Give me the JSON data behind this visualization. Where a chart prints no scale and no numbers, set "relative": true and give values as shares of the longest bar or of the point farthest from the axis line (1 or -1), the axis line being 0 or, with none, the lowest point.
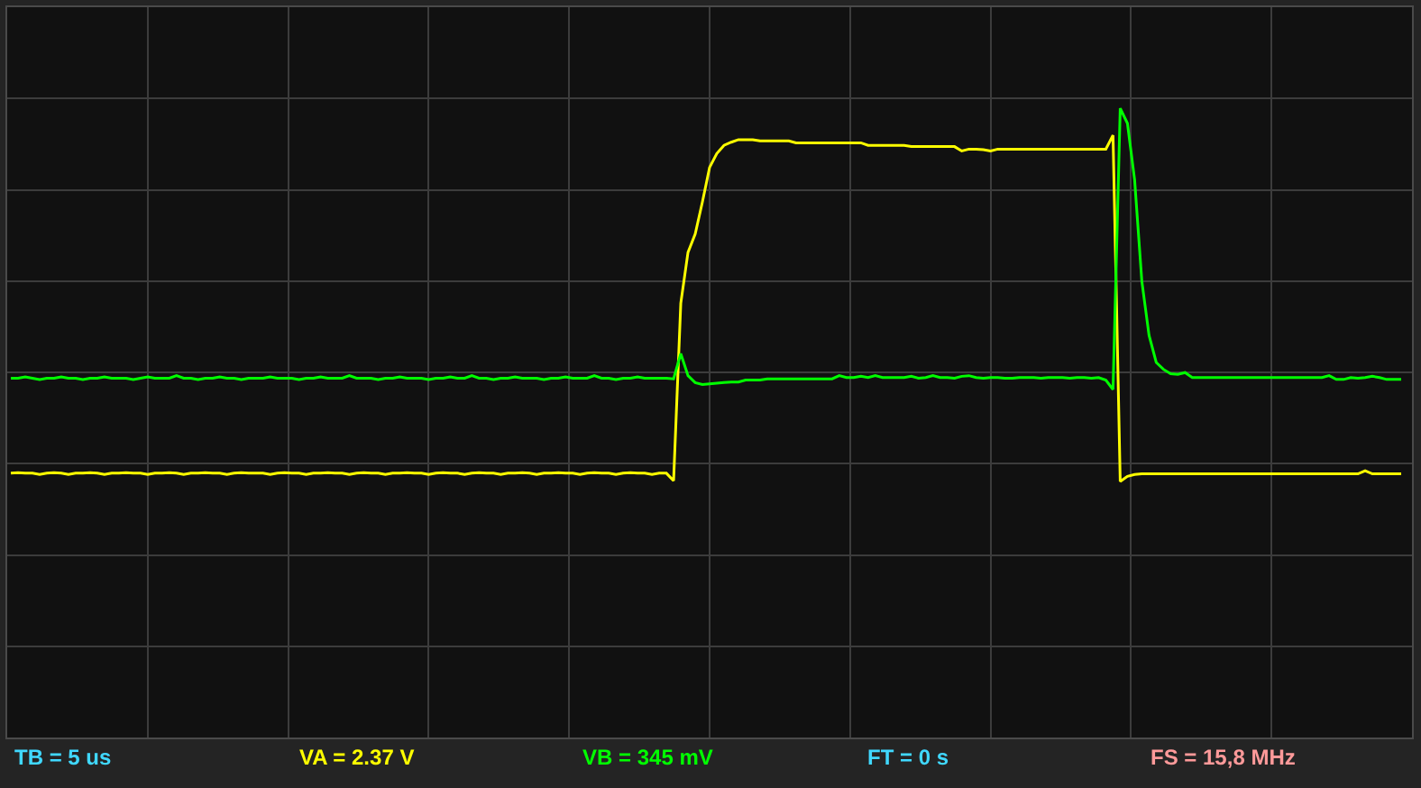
{
  "chart_data": {
    "type": "line",
    "relative": true,
    "grid": true,
    "categories": [
      null,
      null,
      null,
      null,
      null,
      null,
      null,
      null,
      null,
      null,
      null,
      null,
      null,
      null,
      null,
      null,
      null,
      null,
      null,
      null,
      null,
      null,
      null,
      null,
      null,
      null,
      null,
      null,
      null,
      null,
      null,
      null,
      null,
      null,
      null,
      null,
      null,
      null,
      null,
      null,
      null,
      null,
      null,
      null,
      null,
      null,
      null,
      null,
      null,
      null,
      null,
      null,
      null,
      null,
      null,
      null,
      null,
      null,
      null,
      null,
      null,
      null,
      null,
      null,
      null,
      null,
      null,
      null,
      null,
      null,
      null,
      null,
      null,
      null,
      null,
      null,
      null,
      null,
      null,
      null,
      null,
      null,
      null,
      null,
      null,
      null,
      null,
      null,
      null,
      null,
      null,
      null,
      null,
      null,
      null,
      null,
      null,
      null,
      null,
      null,
      null,
      null,
      null,
      null,
      null,
      null,
      null,
      null,
      null,
      null,
      null,
      null,
      null,
      null,
      null,
      null,
      null,
      null,
      null,
      null,
      null,
      null,
      null,
      null,
      null,
      null,
      null,
      null,
      null,
      null,
      null,
      null,
      null,
      null,
      null,
      null,
      null,
      null,
      null,
      null,
      null,
      null,
      null,
      null,
      null,
      null,
      null,
      null,
      null,
      null,
      null,
      null,
      null,
      null,
      null,
      null,
      null,
      null,
      null,
      null,
      null,
      null,
      null,
      null,
      null,
      null,
      null,
      null,
      null,
      null,
      null,
      null,
      null,
      null,
      null,
      null,
      null,
      null,
      null,
      null,
      null,
      null,
      null,
      null,
      null,
      null,
      null,
      null,
      null,
      null,
      null,
      null,
      null,
      null
    ],
    "series": [
      {
        "color": "#ffff00",
        "values": [
          0.42,
          0.421,
          0.42,
          0.42,
          0.418,
          0.42,
          0.421,
          0.42,
          0.418,
          0.42,
          0.42,
          0.421,
          0.42,
          0.418,
          0.42,
          0.42,
          0.421,
          0.42,
          0.42,
          0.418,
          0.42,
          0.42,
          0.421,
          0.42,
          0.418,
          0.42,
          0.42,
          0.421,
          0.42,
          0.42,
          0.418,
          0.42,
          0.421,
          0.42,
          0.42,
          0.42,
          0.418,
          0.42,
          0.421,
          0.42,
          0.42,
          0.418,
          0.42,
          0.42,
          0.421,
          0.42,
          0.42,
          0.418,
          0.42,
          0.421,
          0.42,
          0.42,
          0.418,
          0.42,
          0.42,
          0.421,
          0.42,
          0.42,
          0.418,
          0.42,
          0.421,
          0.42,
          0.42,
          0.418,
          0.42,
          0.421,
          0.42,
          0.42,
          0.418,
          0.42,
          0.42,
          0.421,
          0.42,
          0.418,
          0.42,
          0.42,
          0.421,
          0.42,
          0.42,
          0.418,
          0.42,
          0.421,
          0.42,
          0.42,
          0.418,
          0.42,
          0.421,
          0.42,
          0.42,
          0.418,
          0.42,
          0.42,
          0.408,
          0.69,
          0.771,
          0.8,
          0.851,
          0.906,
          0.928,
          0.941,
          0.946,
          0.95,
          0.95,
          0.95,
          0.948,
          0.948,
          0.948,
          0.948,
          0.948,
          0.945,
          0.945,
          0.945,
          0.945,
          0.945,
          0.945,
          0.945,
          0.945,
          0.945,
          0.945,
          0.941,
          0.941,
          0.941,
          0.941,
          0.941,
          0.941,
          0.939,
          0.939,
          0.939,
          0.939,
          0.939,
          0.939,
          0.939,
          0.932,
          0.935,
          0.935,
          0.934,
          0.932,
          0.935,
          0.935,
          0.935,
          0.935,
          0.935,
          0.935,
          0.935,
          0.935,
          0.935,
          0.935,
          0.935,
          0.935,
          0.935,
          0.935,
          0.935,
          0.935,
          0.957,
          0.407,
          0.415,
          0.418,
          0.419,
          0.419,
          0.419,
          0.419,
          0.419,
          0.419,
          0.419,
          0.419,
          0.419,
          0.419,
          0.419,
          0.419,
          0.419,
          0.419,
          0.419,
          0.419,
          0.419,
          0.419,
          0.419,
          0.419,
          0.419,
          0.419,
          0.419,
          0.419,
          0.419,
          0.419,
          0.419,
          0.419,
          0.419,
          0.419,
          0.419,
          0.424,
          0.419,
          0.419,
          0.419,
          0.419,
          0.419
        ]
      },
      {
        "color": "#00ff00",
        "values": [
          0.571,
          0.571,
          0.573,
          0.571,
          0.569,
          0.571,
          0.571,
          0.573,
          0.571,
          0.571,
          0.569,
          0.571,
          0.571,
          0.573,
          0.571,
          0.571,
          0.571,
          0.569,
          0.571,
          0.573,
          0.571,
          0.571,
          0.571,
          0.575,
          0.571,
          0.571,
          0.569,
          0.571,
          0.571,
          0.573,
          0.571,
          0.571,
          0.569,
          0.571,
          0.571,
          0.571,
          0.573,
          0.571,
          0.571,
          0.571,
          0.569,
          0.571,
          0.571,
          0.573,
          0.571,
          0.571,
          0.571,
          0.575,
          0.571,
          0.571,
          0.571,
          0.569,
          0.571,
          0.571,
          0.573,
          0.571,
          0.571,
          0.571,
          0.569,
          0.571,
          0.571,
          0.573,
          0.571,
          0.571,
          0.575,
          0.571,
          0.571,
          0.569,
          0.571,
          0.571,
          0.573,
          0.571,
          0.571,
          0.571,
          0.569,
          0.571,
          0.571,
          0.573,
          0.571,
          0.571,
          0.571,
          0.575,
          0.571,
          0.571,
          0.569,
          0.571,
          0.571,
          0.573,
          0.571,
          0.571,
          0.571,
          0.571,
          0.57,
          0.61,
          0.575,
          0.564,
          0.561,
          0.562,
          0.563,
          0.564,
          0.565,
          0.565,
          0.568,
          0.568,
          0.568,
          0.57,
          0.57,
          0.57,
          0.57,
          0.57,
          0.57,
          0.57,
          0.57,
          0.57,
          0.57,
          0.575,
          0.572,
          0.572,
          0.574,
          0.572,
          0.575,
          0.572,
          0.572,
          0.572,
          0.572,
          0.574,
          0.571,
          0.572,
          0.575,
          0.572,
          0.572,
          0.571,
          0.574,
          0.575,
          0.572,
          0.571,
          0.572,
          0.572,
          0.571,
          0.571,
          0.572,
          0.572,
          0.572,
          0.571,
          0.572,
          0.572,
          0.572,
          0.571,
          0.572,
          0.572,
          0.571,
          0.572,
          0.568,
          0.553,
          1.0,
          0.976,
          0.886,
          0.725,
          0.639,
          0.596,
          0.585,
          0.578,
          0.577,
          0.58,
          0.572,
          0.572,
          0.572,
          0.572,
          0.572,
          0.572,
          0.572,
          0.572,
          0.572,
          0.572,
          0.572,
          0.572,
          0.572,
          0.572,
          0.572,
          0.572,
          0.572,
          0.572,
          0.572,
          0.575,
          0.569,
          0.569,
          0.572,
          0.571,
          0.572,
          0.574,
          0.572,
          0.569,
          0.569,
          0.569
        ]
      }
    ],
    "annotations": [
      "TB = 5 us",
      "VA = 2.37 V",
      "VB = 345 mV",
      "FT = 0 s",
      "FS = 15,8 MHz"
    ]
  }
}
